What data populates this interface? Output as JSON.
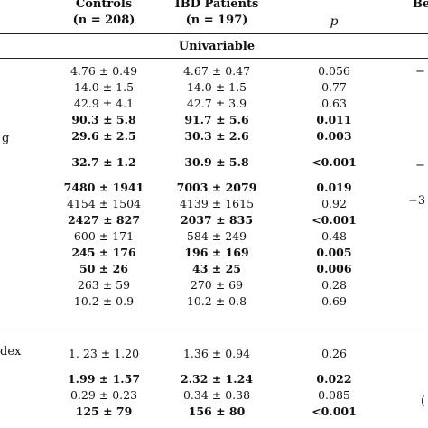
{
  "header": {
    "controls_label": "Controls",
    "controls_n": "(n = 208)",
    "ibd_label": "IBD Patients",
    "ibd_n": "(n = 197)",
    "p_label": "p",
    "right_cut_label": "Be"
  },
  "section_title": "Univariable",
  "left_fragments": {
    "row_label_a": "g",
    "row_label_b": "dex"
  },
  "right_fragments": [
    "−",
    "−",
    "−3",
    "("
  ],
  "rows_group1": [
    {
      "controls": "4.76 ± 0.49",
      "ibd": "4.67 ± 0.47",
      "p": "0.056",
      "bold": false
    },
    {
      "controls": "14.0 ± 1.5",
      "ibd": "14.0 ± 1.5",
      "p": "0.77",
      "bold": false
    },
    {
      "controls": "42.9 ± 4.1",
      "ibd": "42.7 ± 3.9",
      "p": "0.63",
      "bold": false
    },
    {
      "controls": "90.3 ± 5.8",
      "ibd": "91.7 ± 5.6",
      "p": "0.011",
      "bold": true
    },
    {
      "controls": "29.6 ± 2.5",
      "ibd": "30.3 ± 2.6",
      "p": "0.003",
      "bold": true
    },
    {
      "controls": "32.7 ± 1.2",
      "ibd": "30.9 ± 5.8",
      "p": "<0.001",
      "bold": true
    },
    {
      "controls": "7480 ± 1941",
      "ibd": "7003 ± 2079",
      "p": "0.019",
      "bold": true
    },
    {
      "controls": "4154 ± 1504",
      "ibd": "4139 ± 1615",
      "p": "0.92",
      "bold": false
    },
    {
      "controls": "2427 ± 827",
      "ibd": "2037 ± 835",
      "p": "<0.001",
      "bold": true
    },
    {
      "controls": "600 ± 171",
      "ibd": "584 ± 249",
      "p": "0.48",
      "bold": false
    },
    {
      "controls": "245 ± 176",
      "ibd": "196 ± 169",
      "p": "0.005",
      "bold": true
    },
    {
      "controls": "50 ± 26",
      "ibd": "43 ± 25",
      "p": "0.006",
      "bold": true
    },
    {
      "controls": "263 ± 59",
      "ibd": "270 ± 69",
      "p": "0.28",
      "bold": false
    },
    {
      "controls": "10.2 ± 0.9",
      "ibd": "10.2 ± 0.8",
      "p": "0.69",
      "bold": false
    }
  ],
  "rows_group2": [
    {
      "controls": "1. 23 ± 1.20",
      "ibd": "1.36 ± 0.94",
      "p": "0.26",
      "bold": false
    },
    {
      "controls": "1.99 ± 1.57",
      "ibd": "2.32 ± 1.24",
      "p": "0.022",
      "bold": true
    },
    {
      "controls": "0.29 ± 0.23",
      "ibd": "0.34 ± 0.38",
      "p": "0.085",
      "bold": false
    },
    {
      "controls": "125 ± 79",
      "ibd": "156 ± 80",
      "p": "<0.001",
      "bold": true
    }
  ]
}
